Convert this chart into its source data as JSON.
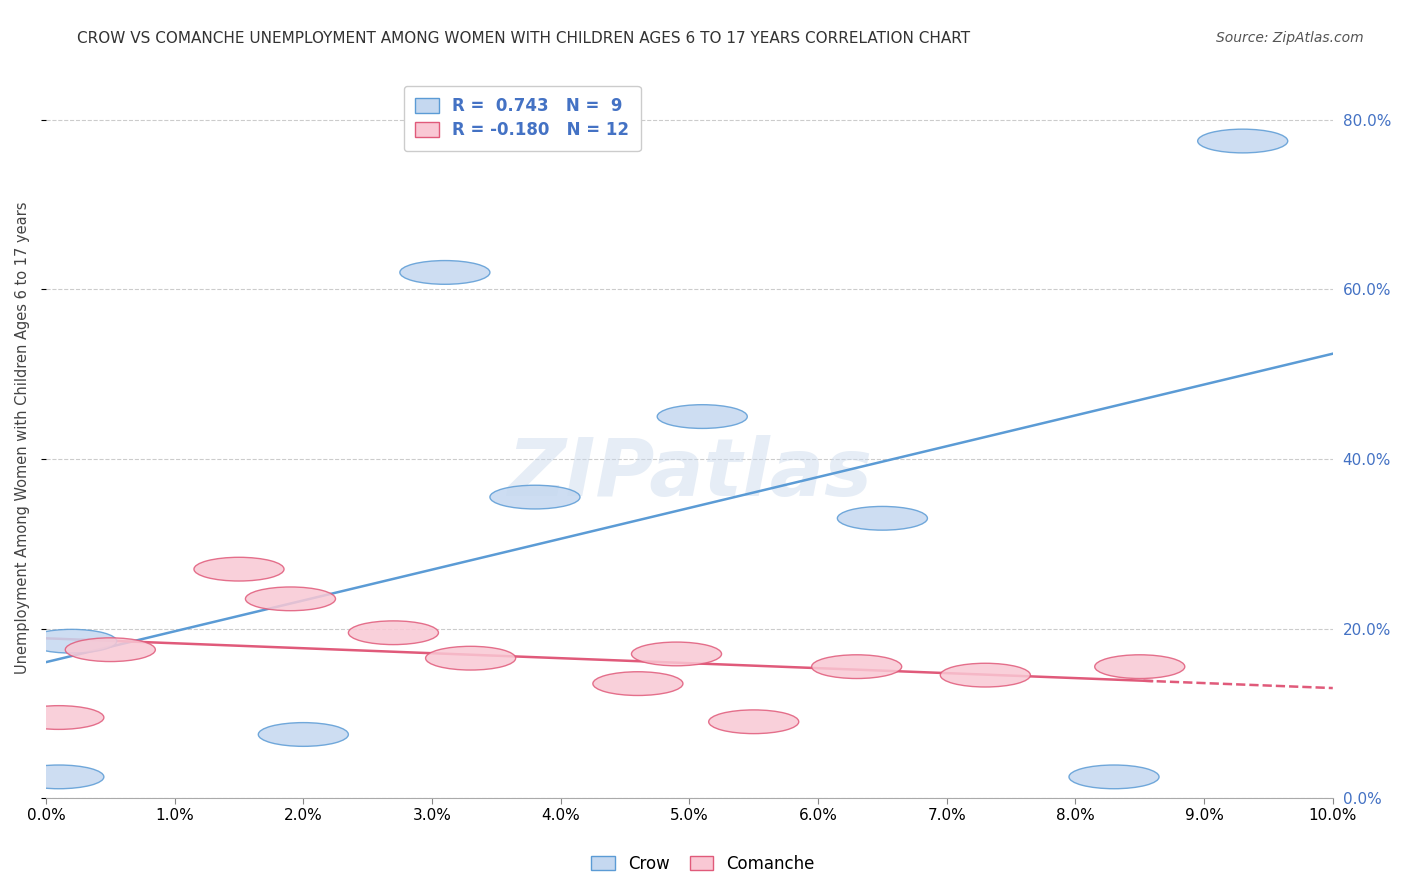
{
  "title": "CROW VS COMANCHE UNEMPLOYMENT AMONG WOMEN WITH CHILDREN AGES 6 TO 17 YEARS CORRELATION CHART",
  "source": "Source: ZipAtlas.com",
  "ylabel": "Unemployment Among Women with Children Ages 6 to 17 years",
  "xlim": [
    0.0,
    0.1
  ],
  "ylim": [
    0.0,
    0.85
  ],
  "xticks": [
    0.0,
    0.01,
    0.02,
    0.03,
    0.04,
    0.05,
    0.06,
    0.07,
    0.08,
    0.09,
    0.1
  ],
  "yticks": [
    0.0,
    0.2,
    0.4,
    0.6,
    0.8
  ],
  "crow_x": [
    0.001,
    0.002,
    0.02,
    0.031,
    0.038,
    0.051,
    0.065,
    0.083,
    0.093
  ],
  "crow_y": [
    0.025,
    0.185,
    0.075,
    0.62,
    0.355,
    0.45,
    0.33,
    0.025,
    0.775
  ],
  "comanche_x": [
    0.001,
    0.005,
    0.015,
    0.019,
    0.027,
    0.033,
    0.046,
    0.049,
    0.055,
    0.063,
    0.073,
    0.085
  ],
  "comanche_y": [
    0.095,
    0.175,
    0.27,
    0.235,
    0.195,
    0.165,
    0.135,
    0.17,
    0.09,
    0.155,
    0.145,
    0.155
  ],
  "crow_R": 0.743,
  "crow_N": 9,
  "comanche_R": -0.18,
  "comanche_N": 12,
  "crow_fill": "#c5d8f0",
  "crow_edge": "#5b9bd5",
  "comanche_fill": "#f9c8d4",
  "comanche_edge": "#e05a7a",
  "crow_line_color": "#5b9bd5",
  "comanche_line_color": "#e05a7a",
  "watermark": "ZIPatlas",
  "background_color": "#ffffff",
  "grid_color": "#cccccc",
  "right_tick_color": "#4472c4",
  "legend_text_color": "#4472c4",
  "title_color": "#333333",
  "source_color": "#555555"
}
